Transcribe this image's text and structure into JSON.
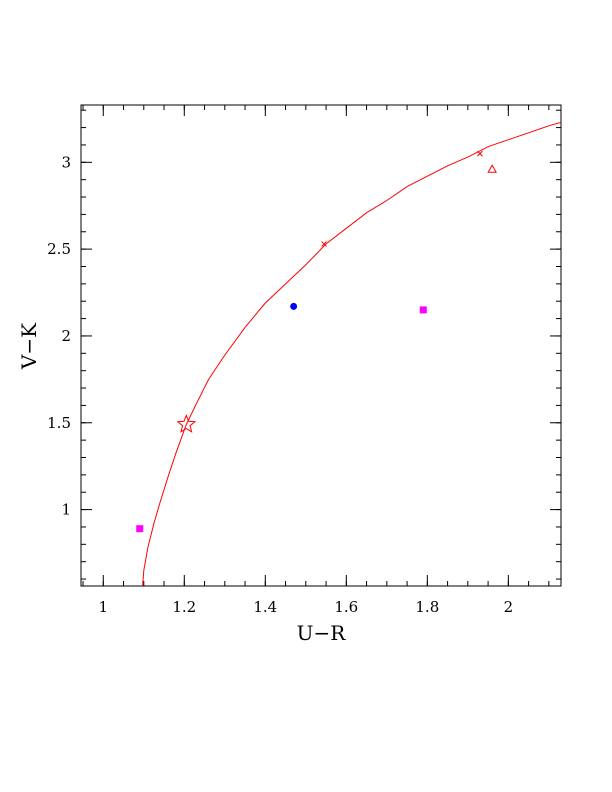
{
  "chart_data": {
    "type": "scatter",
    "xlabel": "U−R",
    "ylabel": "V−K",
    "xlim": [
      0.945,
      2.13
    ],
    "ylim": [
      0.56,
      3.33
    ],
    "x_major_ticks": [
      1,
      1.2,
      1.4,
      1.6,
      1.8,
      2
    ],
    "x_tick_labels": [
      "1",
      "1.2",
      "1.4",
      "1.6",
      "1.8",
      "2"
    ],
    "x_minor_step": 0.05,
    "y_major_ticks": [
      1,
      1.5,
      2,
      2.5,
      3
    ],
    "y_tick_labels": [
      "1",
      "1.5",
      "2",
      "2.5",
      "3"
    ],
    "y_minor_step": 0.1,
    "grid": false,
    "series": [
      {
        "marker": "curve",
        "color": "#ff0000",
        "points": [
          [
            1.097,
            0.56
          ],
          [
            1.1,
            0.65
          ],
          [
            1.11,
            0.78
          ],
          [
            1.125,
            0.92
          ],
          [
            1.14,
            1.04
          ],
          [
            1.16,
            1.19
          ],
          [
            1.18,
            1.33
          ],
          [
            1.205,
            1.49
          ],
          [
            1.23,
            1.61
          ],
          [
            1.26,
            1.75
          ],
          [
            1.3,
            1.89
          ],
          [
            1.35,
            2.05
          ],
          [
            1.4,
            2.19
          ],
          [
            1.45,
            2.3
          ],
          [
            1.5,
            2.41
          ],
          [
            1.55,
            2.53
          ],
          [
            1.6,
            2.62
          ],
          [
            1.65,
            2.71
          ],
          [
            1.7,
            2.78
          ],
          [
            1.75,
            2.86
          ],
          [
            1.8,
            2.92
          ],
          [
            1.85,
            2.98
          ],
          [
            1.9,
            3.03
          ],
          [
            1.95,
            3.09
          ],
          [
            2.0,
            3.13
          ],
          [
            2.05,
            3.17
          ],
          [
            2.1,
            3.21
          ],
          [
            2.13,
            3.23
          ]
        ]
      },
      {
        "marker": "star",
        "color": "#ff0000",
        "points": [
          [
            1.205,
            1.49
          ]
        ]
      },
      {
        "marker": "cross",
        "color": "#ff0000",
        "points": [
          [
            1.545,
            2.53
          ],
          [
            1.93,
            3.05
          ]
        ]
      },
      {
        "marker": "triangle",
        "color": "#ff0000",
        "points": [
          [
            1.96,
            2.96
          ]
        ]
      },
      {
        "marker": "circle",
        "color": "#0000ff",
        "points": [
          [
            1.47,
            2.17
          ]
        ]
      },
      {
        "marker": "square",
        "color": "#ff00ff",
        "points": [
          [
            1.09,
            0.89
          ],
          [
            1.79,
            2.15
          ]
        ]
      }
    ]
  }
}
